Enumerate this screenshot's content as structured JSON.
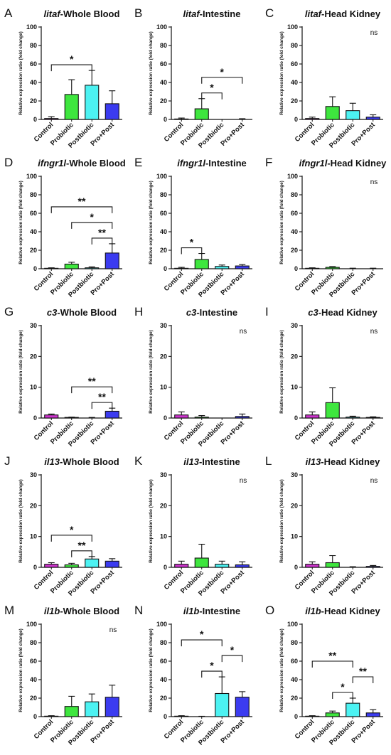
{
  "figure": {
    "groups": [
      "Control",
      "Probiotic",
      "Postbiotic",
      "Pro+Post"
    ],
    "group_colors": [
      "#cc33cc",
      "#3ee63e",
      "#4cf2f2",
      "#3b3bf0"
    ],
    "ylabel": "Relative expression ratio (fold change)"
  },
  "chart_data": [
    {
      "panel": "A",
      "type": "bar",
      "gene": "litaf",
      "tissue": "-Whole Blood",
      "ylim": [
        0,
        100
      ],
      "yticks": [
        0,
        20,
        40,
        60,
        80,
        100
      ],
      "categories": [
        "Control",
        "Probiotic",
        "Postbiotic",
        "Pro+Post"
      ],
      "values": [
        1,
        27,
        37,
        17
      ],
      "errors": [
        2,
        16,
        16,
        14
      ],
      "significance": [
        {
          "from": 0,
          "to": 2,
          "label": "*"
        }
      ]
    },
    {
      "panel": "B",
      "type": "bar",
      "gene": "litaf",
      "tissue": "-Intestine",
      "ylim": [
        0,
        100
      ],
      "yticks": [
        0,
        20,
        40,
        60,
        80,
        100
      ],
      "categories": [
        "Control",
        "Probiotic",
        "Postbiotic",
        "Pro+Post"
      ],
      "values": [
        0.5,
        11.5,
        0,
        0.3
      ],
      "errors": [
        1,
        11,
        0,
        0.5
      ],
      "significance": [
        {
          "from": 1,
          "to": 2,
          "label": "*"
        },
        {
          "from": 1,
          "to": 3,
          "label": "*"
        }
      ]
    },
    {
      "panel": "C",
      "type": "bar",
      "gene": "litaf",
      "tissue": "-Head Kidney",
      "ylim": [
        0,
        100
      ],
      "yticks": [
        0,
        20,
        40,
        60,
        80,
        100
      ],
      "categories": [
        "Control",
        "Probiotic",
        "Postbiotic",
        "Pro+Post"
      ],
      "values": [
        1,
        14,
        9.5,
        2.5
      ],
      "errors": [
        1.5,
        10.5,
        8,
        2.5
      ],
      "significance": [],
      "ns": "ns"
    },
    {
      "panel": "D",
      "type": "bar",
      "gene": "ifngr1l",
      "tissue": "-Whole Blood",
      "ylim": [
        0,
        100
      ],
      "yticks": [
        0,
        20,
        40,
        60,
        80,
        100
      ],
      "categories": [
        "Control",
        "Probiotic",
        "Postbiotic",
        "Pro+Post"
      ],
      "values": [
        0.5,
        5,
        1,
        17
      ],
      "errors": [
        0.5,
        2,
        1,
        10
      ],
      "significance": [
        {
          "from": 0,
          "to": 3,
          "label": "**"
        },
        {
          "from": 1,
          "to": 3,
          "label": "*"
        },
        {
          "from": 2,
          "to": 3,
          "label": "**"
        }
      ]
    },
    {
      "panel": "E",
      "type": "bar",
      "gene": "ifngr1l",
      "tissue": "-Intestine",
      "ylim": [
        0,
        100
      ],
      "yticks": [
        0,
        20,
        40,
        60,
        80,
        100
      ],
      "categories": [
        "Control",
        "Probiotic",
        "Postbiotic",
        "Pro+Post"
      ],
      "values": [
        0.5,
        10,
        2.5,
        3
      ],
      "errors": [
        1,
        6.5,
        1.5,
        1.5
      ],
      "significance": [
        {
          "from": 0,
          "to": 1,
          "label": "*"
        }
      ]
    },
    {
      "panel": "F",
      "type": "bar",
      "gene": "ifngr1l",
      "tissue": "-Head Kidney",
      "ylim": [
        0,
        100
      ],
      "yticks": [
        0,
        20,
        40,
        60,
        80,
        100
      ],
      "categories": [
        "Control",
        "Probiotic",
        "Postbiotic",
        "Pro+Post"
      ],
      "values": [
        0.5,
        1.5,
        0.3,
        0.3
      ],
      "errors": [
        0.5,
        0.8,
        0.3,
        0.3
      ],
      "significance": [],
      "ns": "ns"
    },
    {
      "panel": "G",
      "type": "bar",
      "gene": "c3",
      "tissue": "-Whole Blood",
      "ylim": [
        0,
        30
      ],
      "yticks": [
        0,
        10,
        20,
        30
      ],
      "categories": [
        "Control",
        "Probiotic",
        "Postbiotic",
        "Pro+Post"
      ],
      "values": [
        1,
        0.2,
        0.1,
        2.2
      ],
      "errors": [
        0.3,
        0.1,
        0.1,
        1
      ],
      "significance": [
        {
          "from": 1,
          "to": 3,
          "label": "**"
        },
        {
          "from": 2,
          "to": 3,
          "label": "**"
        }
      ]
    },
    {
      "panel": "H",
      "type": "bar",
      "gene": "c3",
      "tissue": "-Intestine",
      "ylim": [
        0,
        30
      ],
      "yticks": [
        0,
        10,
        20,
        30
      ],
      "categories": [
        "Control",
        "Probiotic",
        "Postbiotic",
        "Pro+Post"
      ],
      "values": [
        1,
        0.3,
        0,
        0.5
      ],
      "errors": [
        1,
        0.5,
        0,
        0.8
      ],
      "significance": [],
      "ns": "ns"
    },
    {
      "panel": "I",
      "type": "bar",
      "gene": "c3",
      "tissue": "-Head Kidney",
      "ylim": [
        0,
        30
      ],
      "yticks": [
        0,
        10,
        20,
        30
      ],
      "categories": [
        "Control",
        "Probiotic",
        "Postbiotic",
        "Pro+Post"
      ],
      "values": [
        1,
        5,
        0.3,
        0.2
      ],
      "errors": [
        1,
        4.8,
        0.3,
        0.2
      ],
      "significance": [],
      "ns": "ns"
    },
    {
      "panel": "J",
      "type": "bar",
      "gene": "il13",
      "tissue": "-Whole Blood",
      "ylim": [
        0,
        30
      ],
      "yticks": [
        0,
        10,
        20,
        30
      ],
      "categories": [
        "Control",
        "Probiotic",
        "Postbiotic",
        "Pro+Post"
      ],
      "values": [
        1,
        0.8,
        2.7,
        2
      ],
      "errors": [
        0.5,
        0.5,
        0.8,
        0.8
      ],
      "significance": [
        {
          "from": 0,
          "to": 2,
          "label": "*"
        },
        {
          "from": 1,
          "to": 2,
          "label": "**"
        }
      ]
    },
    {
      "panel": "K",
      "type": "bar",
      "gene": "il13",
      "tissue": "-Intestine",
      "ylim": [
        0,
        30
      ],
      "yticks": [
        0,
        10,
        20,
        30
      ],
      "categories": [
        "Control",
        "Probiotic",
        "Postbiotic",
        "Pro+Post"
      ],
      "values": [
        1,
        3,
        1,
        0.8
      ],
      "errors": [
        1,
        4.5,
        1,
        1
      ],
      "significance": [],
      "ns": "ns"
    },
    {
      "panel": "L",
      "type": "bar",
      "gene": "il13",
      "tissue": "-Head Kidney",
      "ylim": [
        0,
        30
      ],
      "yticks": [
        0,
        10,
        20,
        30
      ],
      "categories": [
        "Control",
        "Probiotic",
        "Postbiotic",
        "Pro+Post"
      ],
      "values": [
        1,
        1.5,
        0.1,
        0.3
      ],
      "errors": [
        0.8,
        2.3,
        0.1,
        0.3
      ],
      "significance": [],
      "ns": "ns"
    },
    {
      "panel": "M",
      "type": "bar",
      "gene": "il1b",
      "tissue": "-Whole Blood",
      "ylim": [
        0,
        100
      ],
      "yticks": [
        0,
        20,
        40,
        60,
        80,
        100
      ],
      "categories": [
        "Control",
        "Probiotic",
        "Postbiotic",
        "Pro+Post"
      ],
      "values": [
        0.5,
        11,
        16,
        21
      ],
      "errors": [
        0.5,
        11,
        8.5,
        13
      ],
      "significance": [],
      "ns": "ns"
    },
    {
      "panel": "N",
      "type": "bar",
      "gene": "il1b",
      "tissue": "-Intestine",
      "ylim": [
        0,
        100
      ],
      "yticks": [
        0,
        20,
        40,
        60,
        80,
        100
      ],
      "categories": [
        "Control",
        "Probiotic",
        "Postbiotic",
        "Pro+Post"
      ],
      "values": [
        0.5,
        0.2,
        25,
        21
      ],
      "errors": [
        0.5,
        0.2,
        18,
        6
      ],
      "significance": [
        {
          "from": 0,
          "to": 2,
          "label": "*"
        },
        {
          "from": 1,
          "to": 2,
          "label": "*"
        },
        {
          "from": 2,
          "to": 3,
          "label": "*"
        }
      ]
    },
    {
      "panel": "O",
      "type": "bar",
      "gene": "il1b",
      "tissue": "-Head Kidney",
      "ylim": [
        0,
        100
      ],
      "yticks": [
        0,
        20,
        40,
        60,
        80,
        100
      ],
      "categories": [
        "Control",
        "Probiotic",
        "Postbiotic",
        "Pro+Post"
      ],
      "values": [
        0.5,
        4,
        14.5,
        4
      ],
      "errors": [
        0.5,
        2,
        5.5,
        3.5
      ],
      "significance": [
        {
          "from": 0,
          "to": 2,
          "label": "**"
        },
        {
          "from": 1,
          "to": 2,
          "label": "*"
        },
        {
          "from": 2,
          "to": 3,
          "label": "**"
        }
      ]
    }
  ]
}
